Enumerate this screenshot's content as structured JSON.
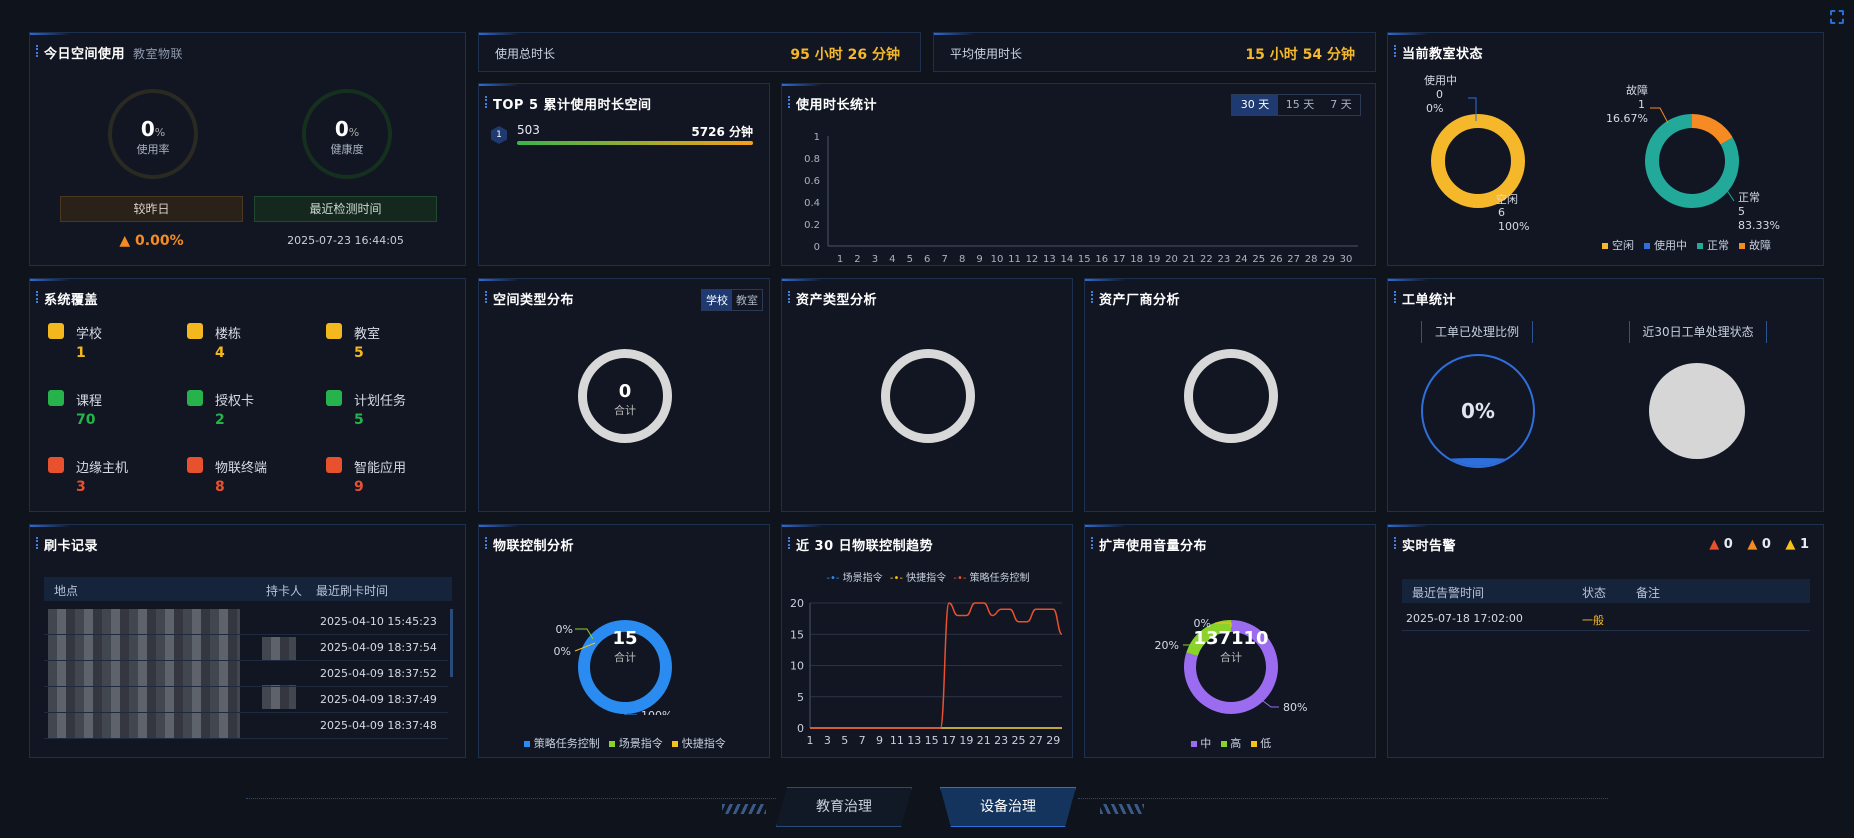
{
  "corner_icon": "expand-icon",
  "space_today": {
    "title": "今日空间使用",
    "subtitle": "教室物联",
    "usage_value": "0",
    "usage_unit": "%",
    "usage_label": "使用率",
    "health_value": "0",
    "health_unit": "%",
    "health_label": "健康度",
    "compare_label": "较昨日",
    "compare_value": "0.00%",
    "last_check_label": "最近检测时间",
    "last_check_time": "2025-07-23 16:44:05"
  },
  "usage_total": {
    "label": "使用总时长",
    "value": "95 小时 26 分钟"
  },
  "usage_avg": {
    "label": "平均使用时长",
    "value": "15 小时 54 分钟"
  },
  "top5": {
    "title": "TOP 5 累计使用时长空间",
    "items": [
      {
        "rank": "1",
        "name": "503",
        "value": "5726 分钟",
        "fill": 1.0
      }
    ]
  },
  "duration_stats": {
    "title": "使用时长统计",
    "tabs": [
      "30 天",
      "15 天",
      "7 天"
    ],
    "active_tab": "30 天",
    "chart_data": {
      "type": "line",
      "y_ticks": [
        "0",
        "0.2",
        "0.4",
        "0.6",
        "0.8",
        "1"
      ],
      "categories": [
        "1",
        "2",
        "3",
        "4",
        "5",
        "6",
        "7",
        "8",
        "9",
        "10",
        "11",
        "12",
        "13",
        "14",
        "15",
        "16",
        "17",
        "18",
        "19",
        "20",
        "21",
        "22",
        "23",
        "24",
        "25",
        "26",
        "27",
        "28",
        "29",
        "30"
      ],
      "ylim": [
        0,
        1
      ],
      "series": []
    }
  },
  "classroom_status": {
    "title": "当前教室状态",
    "left": {
      "in_use_label": "使用中",
      "in_use_count": "0",
      "in_use_pct": "0%",
      "idle_label": "空闲",
      "idle_count": "6",
      "idle_pct": "100%"
    },
    "right": {
      "fault_label": "故障",
      "fault_count": "1",
      "fault_pct": "16.67%",
      "normal_label": "正常",
      "normal_count": "5",
      "normal_pct": "83.33%"
    },
    "legend": [
      "空闲",
      "使用中",
      "正常",
      "故障"
    ],
    "colors": {
      "idle": "#f5b82a",
      "in_use": "#2f6fdc",
      "normal": "#22a99a",
      "fault": "#f58b22"
    },
    "chart_data": [
      {
        "type": "pie",
        "categories": [
          "使用中",
          "空闲"
        ],
        "values": [
          0,
          6
        ]
      },
      {
        "type": "pie",
        "categories": [
          "故障",
          "正常"
        ],
        "values": [
          1,
          5
        ]
      }
    ]
  },
  "system_coverage": {
    "title": "系统覆盖",
    "items": [
      {
        "label": "学校",
        "value": "1",
        "icon": "school-icon",
        "color": "#f2b81d"
      },
      {
        "label": "楼栋",
        "value": "4",
        "icon": "building-icon",
        "color": "#f2b81d"
      },
      {
        "label": "教室",
        "value": "5",
        "icon": "classroom-box-icon",
        "color": "#f2b81d"
      },
      {
        "label": "课程",
        "value": "70",
        "icon": "course-book-icon",
        "color": "#27b34b"
      },
      {
        "label": "授权卡",
        "value": "2",
        "icon": "shield-check-icon",
        "color": "#27b34b"
      },
      {
        "label": "计划任务",
        "value": "5",
        "icon": "clipboard-icon",
        "color": "#27b34b"
      },
      {
        "label": "边缘主机",
        "value": "3",
        "icon": "server-icon",
        "color": "#e8512d"
      },
      {
        "label": "物联终端",
        "value": "8",
        "icon": "terminal-box-icon",
        "color": "#e8512d"
      },
      {
        "label": "智能应用",
        "value": "9",
        "icon": "apps-grid-icon",
        "color": "#e8512d"
      }
    ]
  },
  "space_type": {
    "title": "空间类型分布",
    "tabs": [
      "学校",
      "教室"
    ],
    "active_tab": "学校",
    "total_value": "0",
    "total_label": "合计"
  },
  "asset_type": {
    "title": "资产类型分析"
  },
  "asset_vendor": {
    "title": "资产厂商分析"
  },
  "work_order": {
    "title": "工单统计",
    "processed_label": "工单已处理比例",
    "processed_value": "0%",
    "status_label": "近30日工单处理状态"
  },
  "card_records": {
    "title": "刷卡记录",
    "columns": [
      "地点",
      "持卡人",
      "最近刷卡时间"
    ],
    "times": [
      "2025-04-10 15:45:23",
      "2025-04-09 18:37:54",
      "2025-04-09 18:37:52",
      "2025-04-09 18:37:49",
      "2025-04-09 18:37:48"
    ]
  },
  "iot_control": {
    "title": "物联控制分析",
    "total_value": "15",
    "total_label": "合计",
    "labels": [
      "0%",
      "0%",
      "100%"
    ],
    "legend": [
      "策略任务控制",
      "场景指令",
      "快捷指令"
    ],
    "colors": [
      "#2a8cf0",
      "#8bd32a",
      "#f5c21a"
    ],
    "chart_data": {
      "type": "pie",
      "categories": [
        "策略任务控制",
        "场景指令",
        "快捷指令"
      ],
      "values": [
        15,
        0,
        0
      ]
    }
  },
  "iot_trend": {
    "title": "近 30 日物联控制趋势",
    "legend": [
      "场景指令",
      "快捷指令",
      "策略任务控制"
    ],
    "colors": [
      "#2a8cf0",
      "#f5c21a",
      "#e8512d"
    ],
    "chart_data": {
      "type": "line",
      "categories": [
        "1",
        "2",
        "3",
        "4",
        "5",
        "6",
        "7",
        "8",
        "9",
        "10",
        "11",
        "12",
        "13",
        "14",
        "15",
        "16",
        "17",
        "18",
        "19",
        "20",
        "21",
        "22",
        "23",
        "24",
        "25",
        "26",
        "27",
        "28",
        "29",
        "30"
      ],
      "x_ticks": [
        "1",
        "3",
        "5",
        "7",
        "9",
        "11",
        "13",
        "15",
        "17",
        "19",
        "21",
        "23",
        "25",
        "27",
        "29"
      ],
      "y_ticks": [
        "0",
        "5",
        "10",
        "15",
        "20"
      ],
      "ylim": [
        0,
        20
      ],
      "series": [
        {
          "name": "场景指令",
          "values": [
            0,
            0,
            0,
            0,
            0,
            0,
            0,
            0,
            0,
            0,
            0,
            0,
            0,
            0,
            0,
            0,
            0,
            0,
            0,
            0,
            0,
            0,
            0,
            0,
            0,
            0,
            0,
            0,
            0,
            0
          ]
        },
        {
          "name": "快捷指令",
          "values": [
            0,
            0,
            0,
            0,
            0,
            0,
            0,
            0,
            0,
            0,
            0,
            0,
            0,
            0,
            0,
            0,
            0,
            0,
            0,
            0,
            0,
            0,
            0,
            0,
            0,
            0,
            0,
            0,
            0,
            0
          ]
        },
        {
          "name": "策略任务控制",
          "values": [
            0,
            0,
            0,
            0,
            0,
            0,
            0,
            0,
            0,
            0,
            0,
            0,
            0,
            0,
            0,
            0,
            20,
            18,
            18,
            20,
            20,
            18,
            19,
            19,
            17,
            17,
            19,
            19,
            19,
            15
          ]
        }
      ]
    }
  },
  "speaker_volume": {
    "title": "扩声使用音量分布",
    "total_value": "137110",
    "total_label": "合计",
    "labels": [
      "0%",
      "20%",
      "80%"
    ],
    "legend": [
      "中",
      "高",
      "低"
    ],
    "colors": [
      "#9b6cf0",
      "#8bd32a",
      "#f5c21a"
    ],
    "chart_data": {
      "type": "pie",
      "categories": [
        "中",
        "高",
        "低"
      ],
      "values": [
        80,
        20,
        0
      ]
    }
  },
  "realtime_alarm": {
    "title": "实时告警",
    "counts": [
      "0",
      "0",
      "1"
    ],
    "columns": [
      "最近告警时间",
      "状态",
      "备注"
    ],
    "rows": [
      {
        "time": "2025-07-18 17:02:00",
        "status": "一般",
        "note": ""
      }
    ]
  },
  "nav": {
    "left": "教育治理",
    "right": "设备治理"
  }
}
